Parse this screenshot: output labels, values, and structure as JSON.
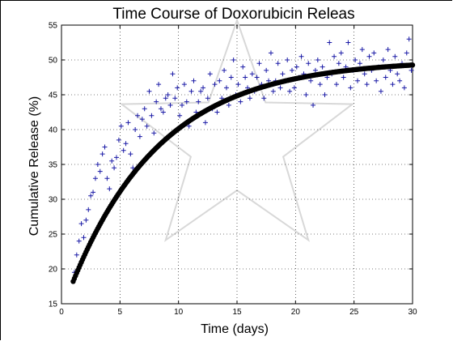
{
  "chart_data": {
    "type": "scatter",
    "title": "Time Course of Doxorubicin Releas",
    "xlabel": "Time (days)",
    "ylabel": "Cumulative Release (%)",
    "xlim": [
      0,
      30
    ],
    "ylim": [
      15,
      55
    ],
    "xticks": [
      0,
      5,
      10,
      15,
      20,
      25,
      30
    ],
    "yticks": [
      15,
      20,
      25,
      30,
      35,
      40,
      45,
      50,
      55
    ],
    "grid": true,
    "colors": {
      "scatter": "#1a1aa6",
      "fit": "#000000",
      "watermark": "#d8d8d8"
    },
    "series": [
      {
        "marker": "plus",
        "points": [
          [
            1.1,
            19.5
          ],
          [
            1.3,
            22.0
          ],
          [
            1.5,
            24.0
          ],
          [
            1.7,
            26.5
          ],
          [
            1.9,
            24.5
          ],
          [
            2.1,
            27.0
          ],
          [
            2.3,
            28.5
          ],
          [
            2.5,
            30.5
          ],
          [
            2.7,
            31.0
          ],
          [
            2.9,
            33.0
          ],
          [
            3.1,
            35.0
          ],
          [
            3.3,
            34.0
          ],
          [
            3.5,
            36.5
          ],
          [
            3.7,
            37.5
          ],
          [
            3.9,
            33.0
          ],
          [
            4.1,
            31.5
          ],
          [
            4.3,
            35.5
          ],
          [
            4.5,
            34.5
          ],
          [
            4.7,
            36.0
          ],
          [
            4.9,
            38.5
          ],
          [
            5.1,
            40.5
          ],
          [
            5.3,
            37.0
          ],
          [
            5.5,
            38.0
          ],
          [
            5.7,
            41.0
          ],
          [
            5.9,
            36.5
          ],
          [
            6.1,
            34.5
          ],
          [
            6.3,
            40.0
          ],
          [
            6.5,
            42.0
          ],
          [
            6.7,
            39.0
          ],
          [
            6.9,
            41.5
          ],
          [
            7.1,
            43.0
          ],
          [
            7.3,
            40.5
          ],
          [
            7.5,
            45.5
          ],
          [
            7.7,
            42.0
          ],
          [
            7.9,
            39.5
          ],
          [
            8.1,
            44.0
          ],
          [
            8.3,
            46.5
          ],
          [
            8.5,
            43.0
          ],
          [
            8.7,
            42.5
          ],
          [
            8.9,
            44.5
          ],
          [
            9.1,
            45.0
          ],
          [
            9.3,
            43.5
          ],
          [
            9.5,
            48.0
          ],
          [
            9.7,
            44.5
          ],
          [
            9.9,
            46.0
          ],
          [
            10.1,
            42.0
          ],
          [
            10.3,
            43.5
          ],
          [
            10.5,
            46.5
          ],
          [
            10.7,
            44.0
          ],
          [
            10.9,
            40.5
          ],
          [
            11.1,
            45.5
          ],
          [
            11.3,
            47.0
          ],
          [
            11.5,
            42.5
          ],
          [
            11.7,
            44.0
          ],
          [
            11.9,
            45.5
          ],
          [
            12.1,
            46.0
          ],
          [
            12.3,
            41.0
          ],
          [
            12.5,
            44.5
          ],
          [
            12.7,
            48.0
          ],
          [
            12.9,
            43.0
          ],
          [
            13.1,
            46.5
          ],
          [
            13.3,
            42.5
          ],
          [
            13.5,
            47.0
          ],
          [
            13.7,
            44.5
          ],
          [
            13.9,
            48.5
          ],
          [
            14.1,
            46.0
          ],
          [
            14.3,
            43.5
          ],
          [
            14.5,
            47.5
          ],
          [
            14.7,
            50.0
          ],
          [
            14.9,
            45.0
          ],
          [
            15.1,
            46.5
          ],
          [
            15.3,
            44.0
          ],
          [
            15.5,
            49.0
          ],
          [
            15.7,
            47.5
          ],
          [
            15.9,
            46.0
          ],
          [
            16.1,
            44.5
          ],
          [
            16.3,
            48.0
          ],
          [
            16.5,
            45.5
          ],
          [
            16.7,
            47.5
          ],
          [
            16.9,
            49.5
          ],
          [
            17.1,
            46.5
          ],
          [
            17.3,
            44.5
          ],
          [
            17.5,
            48.5
          ],
          [
            17.7,
            47.0
          ],
          [
            17.9,
            51.0
          ],
          [
            18.1,
            45.5
          ],
          [
            18.3,
            47.0
          ],
          [
            18.5,
            49.5
          ],
          [
            18.7,
            46.0
          ],
          [
            18.9,
            48.0
          ],
          [
            19.1,
            47.0
          ],
          [
            19.3,
            50.0
          ],
          [
            19.5,
            45.5
          ],
          [
            19.7,
            48.5
          ],
          [
            19.9,
            46.0
          ],
          [
            20.1,
            49.0
          ],
          [
            20.3,
            47.5
          ],
          [
            20.5,
            50.5
          ],
          [
            20.7,
            48.0
          ],
          [
            20.9,
            45.0
          ],
          [
            21.1,
            49.5
          ],
          [
            21.3,
            47.0
          ],
          [
            21.5,
            43.5
          ],
          [
            21.7,
            48.5
          ],
          [
            21.9,
            50.0
          ],
          [
            22.1,
            46.5
          ],
          [
            22.3,
            49.0
          ],
          [
            22.5,
            45.0
          ],
          [
            22.7,
            47.5
          ],
          [
            22.9,
            52.5
          ],
          [
            23.1,
            48.0
          ],
          [
            23.3,
            50.5
          ],
          [
            23.5,
            46.5
          ],
          [
            23.7,
            49.5
          ],
          [
            23.9,
            51.0
          ],
          [
            24.1,
            47.5
          ],
          [
            24.3,
            49.0
          ],
          [
            24.5,
            52.5
          ],
          [
            24.7,
            46.0
          ],
          [
            24.9,
            48.5
          ],
          [
            25.1,
            50.0
          ],
          [
            25.3,
            47.0
          ],
          [
            25.5,
            49.5
          ],
          [
            25.7,
            51.5
          ],
          [
            25.9,
            48.0
          ],
          [
            26.1,
            46.5
          ],
          [
            26.3,
            50.5
          ],
          [
            26.5,
            48.5
          ],
          [
            26.7,
            51.0
          ],
          [
            26.9,
            47.0
          ],
          [
            27.1,
            49.0
          ],
          [
            27.3,
            45.5
          ],
          [
            27.5,
            50.0
          ],
          [
            27.7,
            47.5
          ],
          [
            27.9,
            51.5
          ],
          [
            28.1,
            48.5
          ],
          [
            28.3,
            46.5
          ],
          [
            28.5,
            50.5
          ],
          [
            28.7,
            48.0
          ],
          [
            28.9,
            47.0
          ],
          [
            29.1,
            49.5
          ],
          [
            29.3,
            46.0
          ],
          [
            29.5,
            51.0
          ],
          [
            29.7,
            53.0
          ],
          [
            29.9,
            48.5
          ]
        ]
      },
      {
        "marker": "dot",
        "fit": {
          "model": "A*(1-exp(-k*(t-t0)))",
          "plateau": 50.0,
          "start_value": 18.2,
          "k": 0.13,
          "t_start": 1.0,
          "t_end": 30.0,
          "step": 0.1
        }
      }
    ]
  }
}
